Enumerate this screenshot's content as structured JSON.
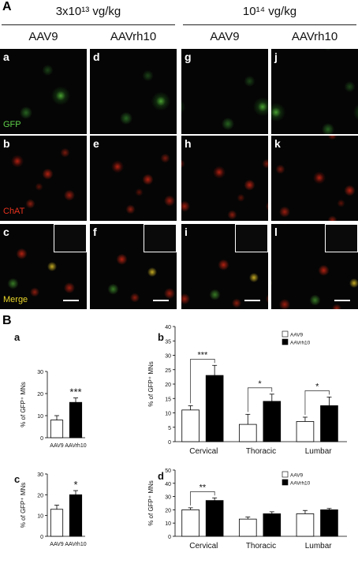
{
  "panel_a": {
    "label": "A",
    "doses": [
      {
        "label": "3x10¹³ vg/kg",
        "vectors": [
          "AAV9",
          "AAVrh10"
        ]
      },
      {
        "label": "10¹⁴ vg/kg",
        "vectors": [
          "AAV9",
          "AAVrh10"
        ]
      }
    ],
    "rows": [
      "GFP",
      "ChAT",
      "Merge"
    ],
    "panels": [
      "a",
      "b",
      "c",
      "d",
      "e",
      "f",
      "g",
      "h",
      "i",
      "j",
      "k",
      "l"
    ]
  },
  "panel_b_label": "B",
  "chart_data": [
    {
      "type": "bar",
      "label": "a",
      "y_label": "% of GFP⁺ MNs",
      "categories": [
        "AAV9",
        "AAVrh10"
      ],
      "values": [
        8,
        16
      ],
      "errors": [
        2,
        2
      ],
      "colors": [
        "#ffffff",
        "#000000"
      ],
      "significance": [
        null,
        "***"
      ],
      "ylim": [
        0,
        30
      ],
      "yticks": [
        0,
        10,
        20,
        30
      ]
    },
    {
      "type": "bar",
      "label": "b",
      "y_label": "% of GFP⁺ MNs",
      "categories": [
        "Cervical",
        "Thoracic",
        "Lumbar"
      ],
      "series": [
        {
          "name": "AAV9",
          "color": "#ffffff",
          "values": [
            11,
            6,
            7
          ],
          "errors": [
            1.5,
            3.5,
            1.5
          ]
        },
        {
          "name": "AAVrh10",
          "color": "#000000",
          "values": [
            23,
            14,
            12.5
          ],
          "errors": [
            3.5,
            2.5,
            3
          ]
        }
      ],
      "significance": [
        "***",
        "*",
        "*"
      ],
      "ylim": [
        0,
        40
      ],
      "yticks": [
        0,
        5,
        10,
        15,
        20,
        25,
        30,
        35,
        40
      ]
    },
    {
      "type": "bar",
      "label": "c",
      "y_label": "% of GFP⁺ MNs",
      "categories": [
        "AAV9",
        "AAVrh10"
      ],
      "values": [
        13,
        20
      ],
      "errors": [
        2,
        2
      ],
      "colors": [
        "#ffffff",
        "#000000"
      ],
      "significance": [
        null,
        "*"
      ],
      "ylim": [
        0,
        30
      ],
      "yticks": [
        0,
        10,
        20,
        30
      ]
    },
    {
      "type": "bar",
      "label": "d",
      "y_label": "% of GFP⁺ MNs",
      "categories": [
        "Cervical",
        "Thoracic",
        "Lumbar"
      ],
      "series": [
        {
          "name": "AAV9",
          "color": "#ffffff",
          "values": [
            20,
            13,
            17
          ],
          "errors": [
            1.5,
            1.5,
            2.5
          ]
        },
        {
          "name": "AAVrh10",
          "color": "#000000",
          "values": [
            27,
            17,
            20
          ],
          "errors": [
            2,
            1.5,
            1
          ]
        }
      ],
      "significance": [
        "**",
        null,
        null
      ],
      "ylim": [
        0,
        50
      ],
      "yticks": [
        0,
        10,
        20,
        30,
        40,
        50
      ]
    }
  ]
}
